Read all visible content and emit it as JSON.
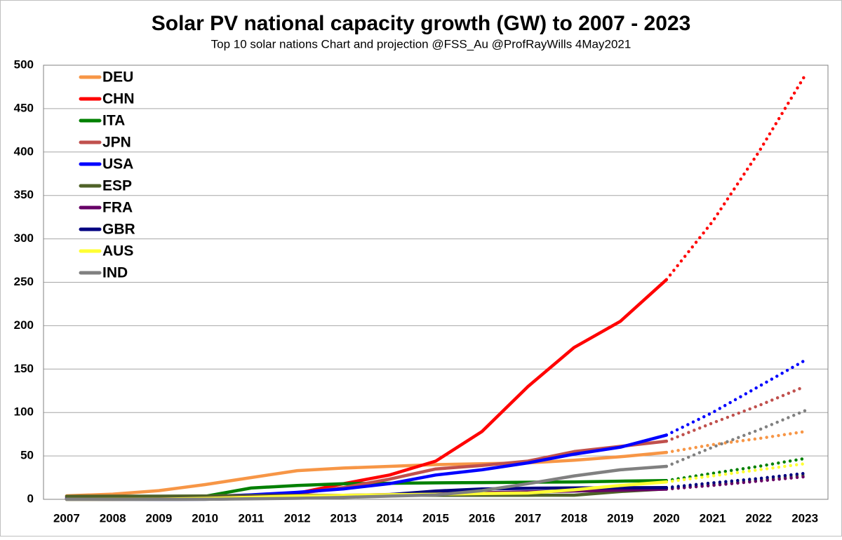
{
  "chart_data": {
    "type": "line",
    "title": "Solar PV national capacity growth (GW) to 2007 - 2023",
    "subtitle": "Top 10 solar nations  Chart and projection @FSS_Au @ProfRayWills  4May2021",
    "categories": [
      "2007",
      "2008",
      "2009",
      "2010",
      "2011",
      "2012",
      "2013",
      "2014",
      "2015",
      "2016",
      "2017",
      "2018",
      "2019",
      "2020",
      "2021",
      "2022",
      "2023"
    ],
    "projection_from": "2020",
    "ylim": [
      0,
      500
    ],
    "yticks": [
      0,
      50,
      100,
      150,
      200,
      250,
      300,
      350,
      400,
      450,
      500
    ],
    "grid": true,
    "legend": "upper left",
    "series": [
      {
        "name": "DEU",
        "color": "#f79646",
        "values": [
          4,
          6,
          10,
          17,
          25,
          33,
          36,
          38,
          40,
          41,
          42,
          45,
          49,
          54,
          63,
          70,
          78
        ]
      },
      {
        "name": "CHN",
        "color": "#ff0000",
        "values": [
          0.1,
          0.1,
          0.4,
          0.8,
          3,
          7,
          18,
          28,
          44,
          78,
          130,
          175,
          205,
          253,
          320,
          400,
          488
        ]
      },
      {
        "name": "ITA",
        "color": "#008000",
        "values": [
          0.1,
          0.4,
          1.1,
          3.5,
          13,
          16,
          18,
          18.5,
          19,
          19.3,
          19.7,
          20,
          20.9,
          21.6,
          30,
          38,
          47
        ]
      },
      {
        "name": "JPN",
        "color": "#c0504d",
        "values": [
          1.9,
          2.1,
          2.6,
          3.6,
          4.9,
          6.6,
          13.6,
          23.3,
          35,
          39,
          44,
          55,
          61,
          67,
          88,
          108,
          130
        ]
      },
      {
        "name": "USA",
        "color": "#0000ff",
        "values": [
          0.8,
          1.2,
          1.6,
          2.9,
          5.2,
          8.1,
          12,
          18,
          28,
          34,
          42,
          52,
          60,
          74,
          100,
          130,
          160
        ]
      },
      {
        "name": "ESP",
        "color": "#4f6228",
        "values": [
          3.5,
          3.6,
          3.6,
          3.9,
          4.3,
          4.6,
          4.7,
          4.7,
          4.7,
          4.7,
          4.7,
          4.8,
          9,
          12,
          17,
          22,
          28
        ]
      },
      {
        "name": "FRA",
        "color": "#660066",
        "values": [
          0.1,
          0.2,
          0.3,
          1.2,
          2.9,
          4.1,
          4.6,
          5.6,
          6.7,
          7.6,
          8.6,
          9.6,
          10.6,
          11.7,
          16,
          21,
          26
        ]
      },
      {
        "name": "GBR",
        "color": "#000080",
        "values": [
          0,
          0,
          0,
          0.1,
          1,
          1.8,
          2.9,
          5.5,
          9.5,
          11.9,
          12.8,
          13.1,
          13.3,
          13.5,
          19,
          24,
          30
        ]
      },
      {
        "name": "AUS",
        "color": "#ffff33",
        "values": [
          0,
          0.1,
          0.2,
          1.1,
          2.4,
          3.8,
          4.6,
          5.3,
          5.9,
          6.7,
          7.3,
          11,
          15.9,
          20,
          27,
          34,
          41
        ]
      },
      {
        "name": "IND",
        "color": "#808080",
        "values": [
          0,
          0,
          0,
          0.1,
          0.6,
          1.2,
          2.3,
          3.7,
          5,
          10,
          18,
          27,
          34,
          38,
          60,
          80,
          102
        ]
      }
    ]
  }
}
